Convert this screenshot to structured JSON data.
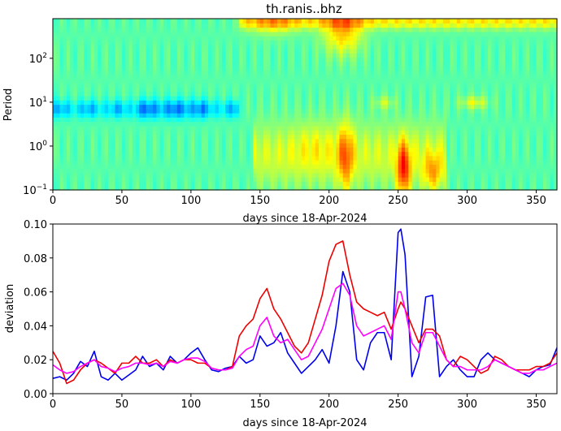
{
  "chart_data": [
    {
      "type": "heatmap",
      "title": "th.ranis..bhz",
      "xlabel": "days since 18-Apr-2024",
      "ylabel": "Period",
      "xlim": [
        0,
        365
      ],
      "ylim": [
        0.1,
        800
      ],
      "yscale": "log",
      "xticks": [
        0,
        50,
        100,
        150,
        200,
        250,
        300,
        350
      ],
      "yticks": [
        {
          "value": 0.1,
          "base": "10",
          "exp": "−1"
        },
        {
          "value": 1,
          "base": "10",
          "exp": "0"
        },
        {
          "value": 10,
          "base": "10",
          "exp": "1"
        },
        {
          "value": 100,
          "base": "10",
          "exp": "2"
        }
      ],
      "colormap": "jet",
      "grid": false
    },
    {
      "type": "line",
      "xlabel": "days since 18-Apr-2024",
      "ylabel": "deviation",
      "xlim": [
        0,
        365
      ],
      "ylim": [
        0,
        0.1
      ],
      "xticks": [
        0,
        50,
        100,
        150,
        200,
        250,
        300,
        350
      ],
      "yticks": [
        "0.00",
        "0.02",
        "0.04",
        "0.06",
        "0.08",
        "0.10"
      ],
      "grid": false,
      "series": [
        {
          "color": "#0000ee",
          "x": [
            0,
            5,
            10,
            15,
            20,
            25,
            30,
            35,
            40,
            45,
            50,
            55,
            60,
            65,
            70,
            75,
            80,
            85,
            90,
            95,
            100,
            105,
            110,
            115,
            120,
            125,
            130,
            135,
            140,
            145,
            150,
            155,
            160,
            165,
            170,
            175,
            180,
            185,
            190,
            195,
            200,
            205,
            210,
            215,
            220,
            225,
            230,
            235,
            240,
            245,
            250,
            252,
            255,
            260,
            265,
            270,
            275,
            280,
            285,
            290,
            295,
            300,
            305,
            310,
            315,
            320,
            325,
            330,
            335,
            340,
            345,
            350,
            355,
            360,
            365
          ],
          "y": [
            0.009,
            0.01,
            0.008,
            0.012,
            0.019,
            0.016,
            0.025,
            0.01,
            0.008,
            0.012,
            0.008,
            0.011,
            0.014,
            0.022,
            0.016,
            0.018,
            0.014,
            0.022,
            0.018,
            0.02,
            0.024,
            0.027,
            0.02,
            0.014,
            0.013,
            0.015,
            0.016,
            0.022,
            0.018,
            0.02,
            0.034,
            0.028,
            0.03,
            0.036,
            0.024,
            0.018,
            0.012,
            0.016,
            0.02,
            0.026,
            0.018,
            0.04,
            0.072,
            0.06,
            0.02,
            0.014,
            0.03,
            0.036,
            0.036,
            0.02,
            0.095,
            0.097,
            0.082,
            0.01,
            0.022,
            0.057,
            0.058,
            0.01,
            0.016,
            0.02,
            0.014,
            0.01,
            0.01,
            0.02,
            0.024,
            0.02,
            0.018,
            0.016,
            0.014,
            0.012,
            0.01,
            0.014,
            0.016,
            0.017,
            0.027
          ]
        },
        {
          "color": "#ee0000",
          "x": [
            0,
            5,
            10,
            15,
            20,
            25,
            30,
            35,
            40,
            45,
            50,
            55,
            60,
            65,
            70,
            75,
            80,
            85,
            90,
            95,
            100,
            105,
            110,
            115,
            120,
            125,
            130,
            135,
            140,
            145,
            150,
            155,
            160,
            165,
            170,
            175,
            180,
            185,
            190,
            195,
            200,
            205,
            210,
            215,
            220,
            225,
            230,
            235,
            240,
            245,
            250,
            252,
            255,
            260,
            265,
            270,
            275,
            280,
            285,
            290,
            295,
            300,
            305,
            310,
            315,
            320,
            325,
            330,
            335,
            340,
            345,
            350,
            355,
            360,
            365
          ],
          "y": [
            0.025,
            0.018,
            0.006,
            0.008,
            0.014,
            0.018,
            0.02,
            0.018,
            0.015,
            0.012,
            0.018,
            0.018,
            0.022,
            0.018,
            0.018,
            0.02,
            0.016,
            0.02,
            0.018,
            0.02,
            0.02,
            0.018,
            0.018,
            0.015,
            0.014,
            0.014,
            0.016,
            0.034,
            0.04,
            0.044,
            0.056,
            0.062,
            0.05,
            0.044,
            0.036,
            0.028,
            0.024,
            0.03,
            0.044,
            0.058,
            0.078,
            0.088,
            0.09,
            0.07,
            0.054,
            0.05,
            0.048,
            0.046,
            0.048,
            0.038,
            0.05,
            0.054,
            0.05,
            0.04,
            0.03,
            0.038,
            0.038,
            0.034,
            0.02,
            0.016,
            0.022,
            0.02,
            0.016,
            0.012,
            0.014,
            0.022,
            0.02,
            0.016,
            0.014,
            0.014,
            0.014,
            0.016,
            0.016,
            0.018,
            0.024
          ]
        },
        {
          "color": "#ff00ff",
          "x": [
            0,
            5,
            10,
            15,
            20,
            25,
            30,
            35,
            40,
            45,
            50,
            55,
            60,
            65,
            70,
            75,
            80,
            85,
            90,
            95,
            100,
            105,
            110,
            115,
            120,
            125,
            130,
            135,
            140,
            145,
            150,
            155,
            160,
            165,
            170,
            175,
            180,
            185,
            190,
            195,
            200,
            205,
            210,
            215,
            220,
            225,
            230,
            235,
            240,
            245,
            250,
            252,
            255,
            260,
            265,
            270,
            275,
            280,
            285,
            290,
            295,
            300,
            305,
            310,
            315,
            320,
            325,
            330,
            335,
            340,
            345,
            350,
            355,
            360,
            365
          ],
          "y": [
            0.017,
            0.014,
            0.012,
            0.013,
            0.016,
            0.018,
            0.02,
            0.016,
            0.015,
            0.013,
            0.015,
            0.016,
            0.018,
            0.018,
            0.017,
            0.018,
            0.016,
            0.019,
            0.018,
            0.02,
            0.021,
            0.021,
            0.019,
            0.015,
            0.014,
            0.014,
            0.015,
            0.022,
            0.026,
            0.028,
            0.04,
            0.045,
            0.034,
            0.03,
            0.032,
            0.026,
            0.02,
            0.022,
            0.03,
            0.038,
            0.05,
            0.062,
            0.065,
            0.058,
            0.04,
            0.034,
            0.036,
            0.038,
            0.04,
            0.032,
            0.06,
            0.06,
            0.05,
            0.03,
            0.024,
            0.036,
            0.036,
            0.028,
            0.02,
            0.016,
            0.016,
            0.014,
            0.014,
            0.014,
            0.016,
            0.02,
            0.018,
            0.016,
            0.014,
            0.012,
            0.012,
            0.014,
            0.014,
            0.016,
            0.018
          ]
        }
      ]
    }
  ]
}
